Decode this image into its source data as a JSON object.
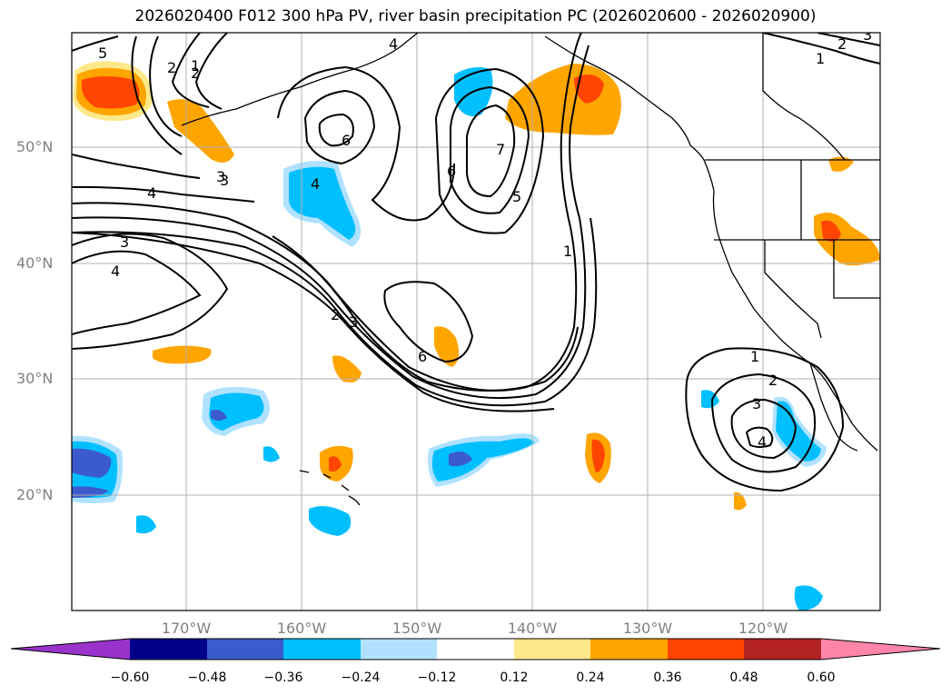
{
  "title": "2026020400 F012 300 hPa PV, river basin precipitation PC (2026020600 - 2026020900)",
  "latitude_labels": [
    "50°N",
    "40°N",
    "30°N",
    "20°N"
  ],
  "longitude_labels": [
    "170°W",
    "160°W",
    "150°W",
    "140°W",
    "130°W",
    "120°W"
  ],
  "contour_labels": [
    "5",
    "2",
    "1",
    "6",
    "3",
    "4",
    "4",
    "6",
    "5",
    "7",
    "4",
    "1",
    "2",
    "3",
    "3",
    "4",
    "2",
    "3",
    "6",
    "1",
    "2",
    "3",
    "4",
    "1",
    "2",
    "3"
  ],
  "colorbar": {
    "tick_labels": [
      "−0.60",
      "−0.48",
      "−0.36",
      "−0.24",
      "−0.12",
      "0.12",
      "0.24",
      "0.36",
      "0.48",
      "0.60"
    ],
    "colors": [
      "#9933cc",
      "#00008b",
      "#3b5bcc",
      "#00bfff",
      "#b0e2ff",
      "#ffffff",
      "#ffe88a",
      "#ffa500",
      "#ff4500",
      "#b22222",
      "#ff85aa"
    ]
  },
  "colors": {
    "grid": "#b0b0b0",
    "contour": "#000000",
    "coast": "#000000"
  }
}
